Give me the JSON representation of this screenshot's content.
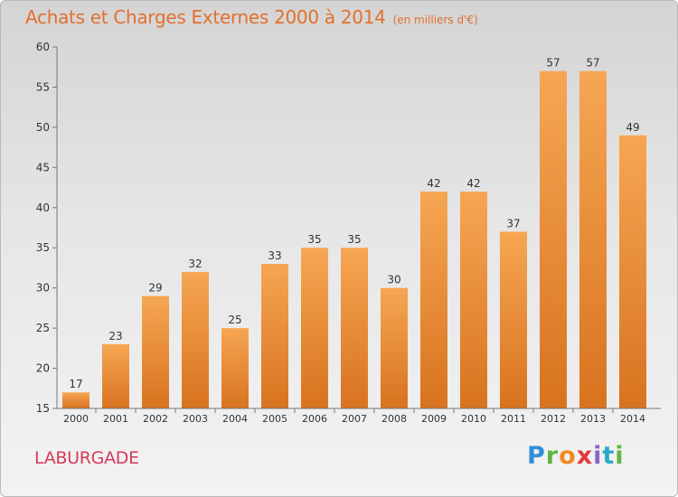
{
  "header": {
    "title": "Achats et Charges Externes 2000 à 2014",
    "unit": "(en milliers d'€)"
  },
  "location": "LABURGADE",
  "brand": {
    "logo_letters": [
      "P",
      "r",
      "o",
      "x",
      "i",
      "t",
      "i"
    ]
  },
  "colors": {
    "bar_top": "#f6a653",
    "bar_bottom": "#d8731f",
    "title": "#e0712f",
    "location": "#d63a5a"
  },
  "chart_data": {
    "type": "bar",
    "categories": [
      "2000",
      "2001",
      "2002",
      "2003",
      "2004",
      "2005",
      "2006",
      "2007",
      "2008",
      "2009",
      "2010",
      "2011",
      "2012",
      "2013",
      "2014"
    ],
    "values": [
      17,
      23,
      29,
      32,
      25,
      33,
      35,
      35,
      30,
      42,
      42,
      37,
      57,
      57,
      49
    ],
    "title": "Achats et Charges Externes 2000 à 2014",
    "unit": "(en milliers d'€)",
    "xlabel": "",
    "ylabel": "",
    "ylim": [
      15,
      60
    ],
    "yticks": [
      15,
      20,
      25,
      30,
      35,
      40,
      45,
      50,
      55,
      60
    ],
    "grid": false,
    "data_labels": true
  }
}
